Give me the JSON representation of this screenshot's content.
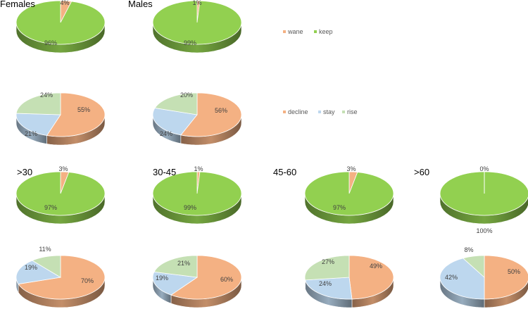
{
  "colors": {
    "orange": "#F4B183",
    "green": "#92D050",
    "blue": "#BDD7EE",
    "lightgreen": "#C5E0B4"
  },
  "legends": [
    {
      "items": [
        {
          "label": "wane",
          "color": "#F4B183"
        },
        {
          "label": "keep",
          "color": "#92D050"
        }
      ]
    },
    {
      "items": [
        {
          "label": "decline",
          "color": "#F4B183"
        },
        {
          "label": "stay",
          "color": "#BDD7EE"
        },
        {
          "label": "rise",
          "color": "#C5E0B4"
        }
      ]
    }
  ],
  "chart_data": [
    {
      "type": "pie",
      "title": "Females",
      "labels": [
        "wane",
        "keep"
      ],
      "values": [
        4,
        96
      ],
      "value_labels": [
        "4%",
        "96%"
      ]
    },
    {
      "type": "pie",
      "title": "Males",
      "labels": [
        "wane",
        "keep"
      ],
      "values": [
        1,
        99
      ],
      "value_labels": [
        "1%",
        "99%"
      ]
    },
    {
      "type": "pie",
      "title": "",
      "labels": [
        "decline",
        "stay",
        "rise"
      ],
      "values": [
        55,
        21,
        24
      ],
      "value_labels": [
        "55%",
        "21%",
        "24%"
      ]
    },
    {
      "type": "pie",
      "title": "",
      "labels": [
        "decline",
        "stay",
        "rise"
      ],
      "values": [
        56,
        24,
        20
      ],
      "value_labels": [
        "56%",
        "24%",
        "20%"
      ]
    },
    {
      "type": "pie",
      "title": ">30",
      "labels": [
        "wane",
        "keep"
      ],
      "values": [
        3,
        97
      ],
      "value_labels": [
        "3%",
        "97%"
      ]
    },
    {
      "type": "pie",
      "title": "30-45",
      "labels": [
        "wane",
        "keep"
      ],
      "values": [
        1,
        99
      ],
      "value_labels": [
        "1%",
        "99%"
      ]
    },
    {
      "type": "pie",
      "title": "45-60",
      "labels": [
        "wane",
        "keep"
      ],
      "values": [
        3,
        97
      ],
      "value_labels": [
        "3%",
        "97%"
      ]
    },
    {
      "type": "pie",
      "title": ">60",
      "labels": [
        "wane",
        "keep"
      ],
      "values": [
        0,
        100
      ],
      "value_labels": [
        "0%",
        "100%"
      ]
    },
    {
      "type": "pie",
      "title": "",
      "labels": [
        "decline",
        "stay",
        "rise"
      ],
      "values": [
        70,
        19,
        11
      ],
      "value_labels": [
        "70%",
        "19%",
        "11%"
      ]
    },
    {
      "type": "pie",
      "title": "",
      "labels": [
        "decline",
        "stay",
        "rise"
      ],
      "values": [
        60,
        19,
        21
      ],
      "value_labels": [
        "60%",
        "19%",
        "21%"
      ]
    },
    {
      "type": "pie",
      "title": "",
      "labels": [
        "decline",
        "stay",
        "rise"
      ],
      "values": [
        49,
        24,
        27
      ],
      "value_labels": [
        "49%",
        "24%",
        "27%"
      ]
    },
    {
      "type": "pie",
      "title": "",
      "labels": [
        "decline",
        "stay",
        "rise"
      ],
      "values": [
        50,
        42,
        8
      ],
      "value_labels": [
        "50%",
        "42%",
        "8%"
      ]
    }
  ]
}
